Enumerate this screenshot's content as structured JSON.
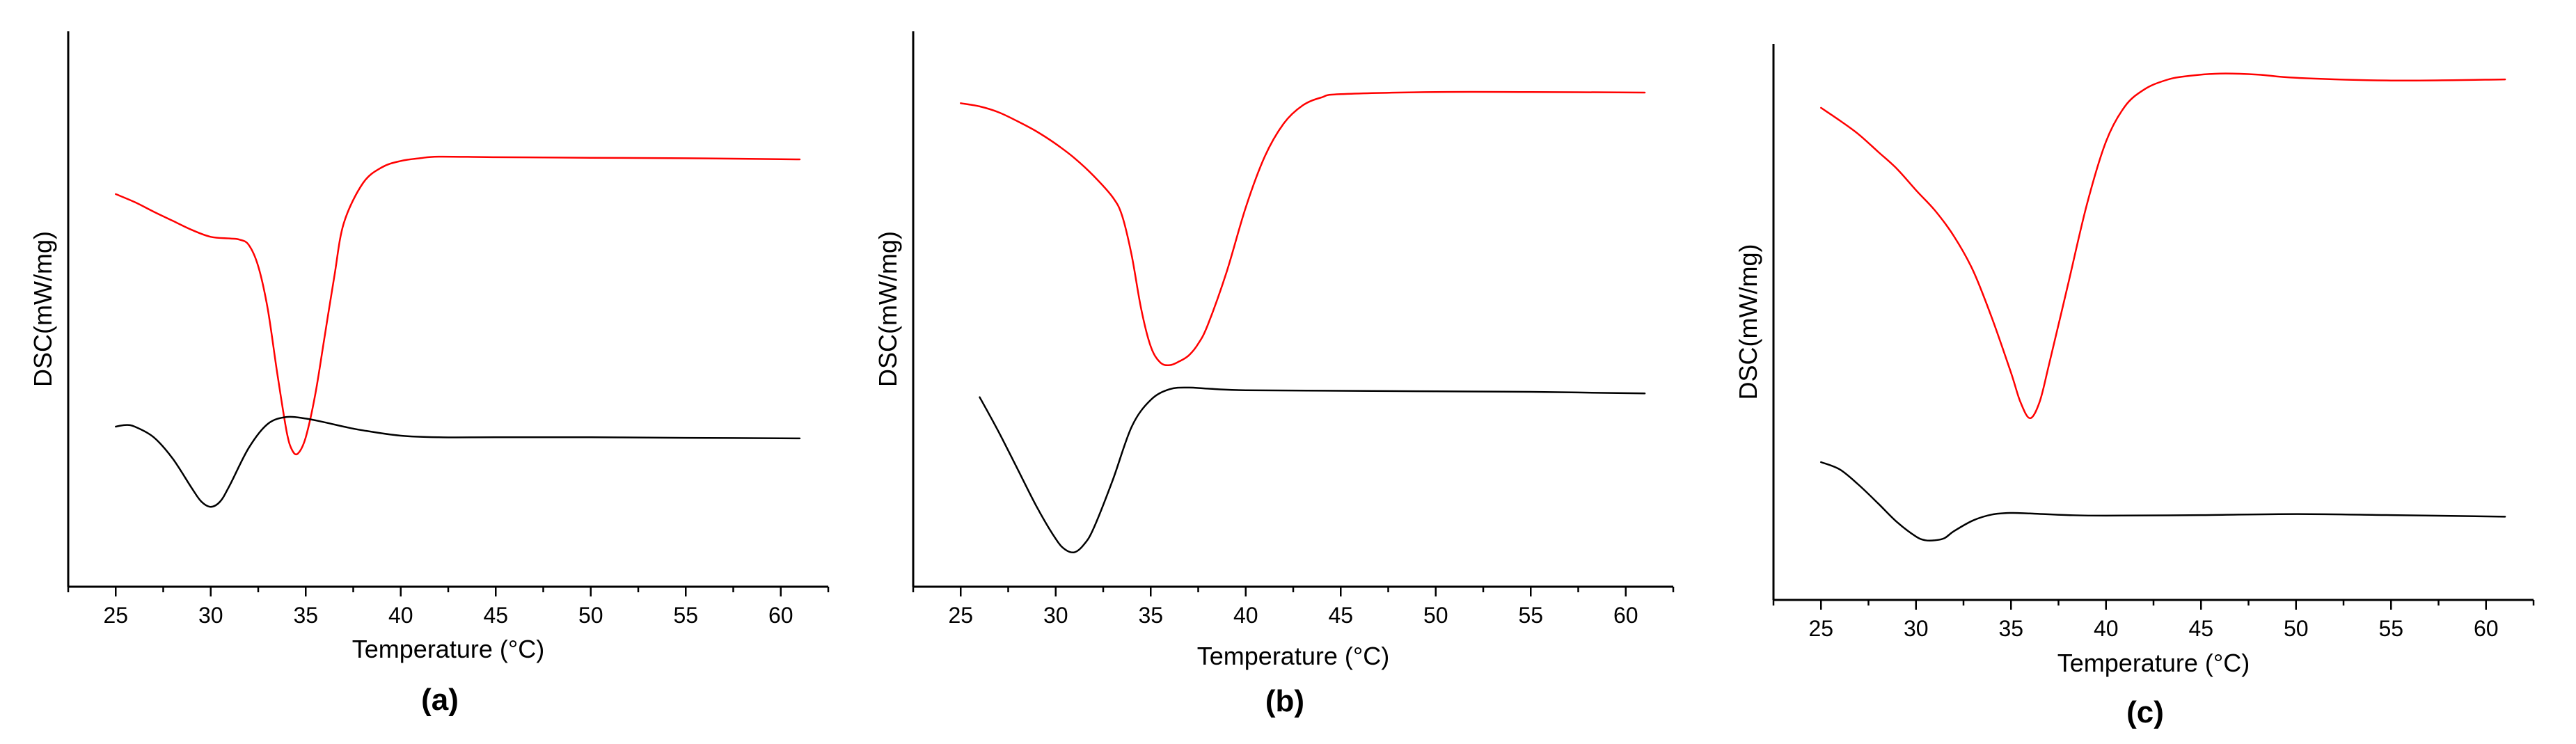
{
  "chart_data": [
    {
      "type": "line",
      "panel_label": "(a)",
      "xlabel": "Temperature (°C)",
      "ylabel": "DSC(mW/mg)",
      "xlim": [
        22.5,
        62.5
      ],
      "xticks": [
        25,
        30,
        35,
        40,
        45,
        50,
        55,
        60
      ],
      "ylim": [
        0,
        100
      ],
      "grid": false,
      "series": [
        {
          "color": "#ff0000",
          "x": [
            25,
            26,
            27,
            28,
            29,
            30,
            31,
            31.5,
            32,
            32.5,
            33,
            33.5,
            34,
            34.3,
            34.6,
            35,
            35.5,
            36,
            36.5,
            37,
            38,
            39,
            40,
            41,
            42,
            45,
            50,
            55,
            61
          ],
          "y": [
            71.5,
            70,
            68.2,
            66.5,
            64.8,
            63.5,
            63.2,
            63,
            62,
            58,
            50,
            38,
            27,
            23.5,
            23,
            26,
            34,
            45,
            56,
            66,
            73.5,
            76.5,
            77.7,
            78.2,
            78.5,
            78.4,
            78.3,
            78.2,
            78
          ]
        },
        {
          "color": "#000000",
          "x": [
            25,
            25.5,
            26,
            27,
            28,
            29,
            29.5,
            30,
            30.5,
            31,
            32,
            33,
            34,
            35,
            36,
            37,
            38,
            40,
            42,
            45,
            50,
            55,
            61
          ],
          "y": [
            28,
            28.3,
            28,
            26,
            22,
            16.5,
            14,
            13,
            14,
            17,
            24,
            28.5,
            29.8,
            29.5,
            28.8,
            28,
            27.3,
            26.3,
            26,
            26,
            26,
            25.9,
            25.8
          ]
        }
      ]
    },
    {
      "type": "line",
      "panel_label": "(b)",
      "xlabel": "Temperature (°C)",
      "ylabel": "DSC(mW/mg)",
      "xlim": [
        22.5,
        62.5
      ],
      "xticks": [
        25,
        30,
        35,
        40,
        45,
        50,
        55,
        60
      ],
      "ylim": [
        0,
        100
      ],
      "grid": false,
      "series": [
        {
          "color": "#ff0000",
          "x": [
            25,
            26,
            27,
            28,
            29,
            30,
            31,
            32,
            33,
            33.5,
            34,
            34.5,
            35,
            35.5,
            36,
            36.5,
            37,
            37.5,
            38,
            39,
            40,
            41,
            42,
            43,
            44,
            45,
            50,
            55,
            61
          ],
          "y": [
            88.5,
            87.9,
            86.8,
            85.1,
            83.2,
            80.9,
            78.2,
            74.9,
            70.9,
            67.4,
            60,
            50,
            43,
            40,
            39.5,
            40.2,
            41.3,
            43.5,
            47,
            57,
            69,
            78.5,
            84.7,
            88.1,
            89.6,
            90.2,
            90.6,
            90.6,
            90.5
          ]
        },
        {
          "color": "#000000",
          "x": [
            26,
            27,
            28,
            29,
            30,
            30.5,
            31,
            31.5,
            32,
            33,
            34,
            35,
            36,
            37,
            38,
            40,
            45,
            50,
            55,
            61
          ],
          "y": [
            33.5,
            27,
            20,
            13,
            7,
            5,
            4.5,
            6,
            9,
            18,
            28,
            33,
            35,
            35.3,
            35.1,
            34.8,
            34.7,
            34.6,
            34.5,
            34.2
          ]
        }
      ]
    },
    {
      "type": "line",
      "panel_label": "(c)",
      "xlabel": "Temperature (°C)",
      "ylabel": "DSC(mW/mg)",
      "xlim": [
        22.5,
        62.5
      ],
      "xticks": [
        25,
        30,
        35,
        40,
        45,
        50,
        55,
        60
      ],
      "ylim": [
        0,
        100
      ],
      "grid": false,
      "series": [
        {
          "color": "#ff0000",
          "x": [
            25,
            26,
            27,
            28,
            29,
            30,
            31,
            32,
            33,
            34,
            35,
            35.5,
            36,
            36.5,
            37,
            38,
            39,
            40,
            41,
            42,
            43,
            44,
            46,
            48,
            50,
            55,
            61
          ],
          "y": [
            90,
            87.6,
            85,
            81.8,
            78.6,
            74.6,
            70.8,
            66,
            59.6,
            50.7,
            40.5,
            35,
            32,
            35,
            42,
            57,
            72,
            83.7,
            90.3,
            93.4,
            95,
            95.8,
            96.4,
            96.2,
            95.6,
            95.1,
            95.3
          ]
        },
        {
          "color": "#000000",
          "x": [
            25,
            26,
            27,
            28,
            29,
            30,
            30.5,
            31,
            31.5,
            32,
            33,
            34,
            35,
            36,
            38,
            40,
            45,
            50,
            55,
            61
          ],
          "y": [
            23.8,
            22.4,
            19.5,
            16.1,
            12.6,
            9.9,
            9.2,
            9.2,
            9.6,
            10.9,
            12.9,
            14,
            14.3,
            14.2,
            13.9,
            13.8,
            13.9,
            14.1,
            13.9,
            13.6
          ]
        }
      ]
    }
  ]
}
